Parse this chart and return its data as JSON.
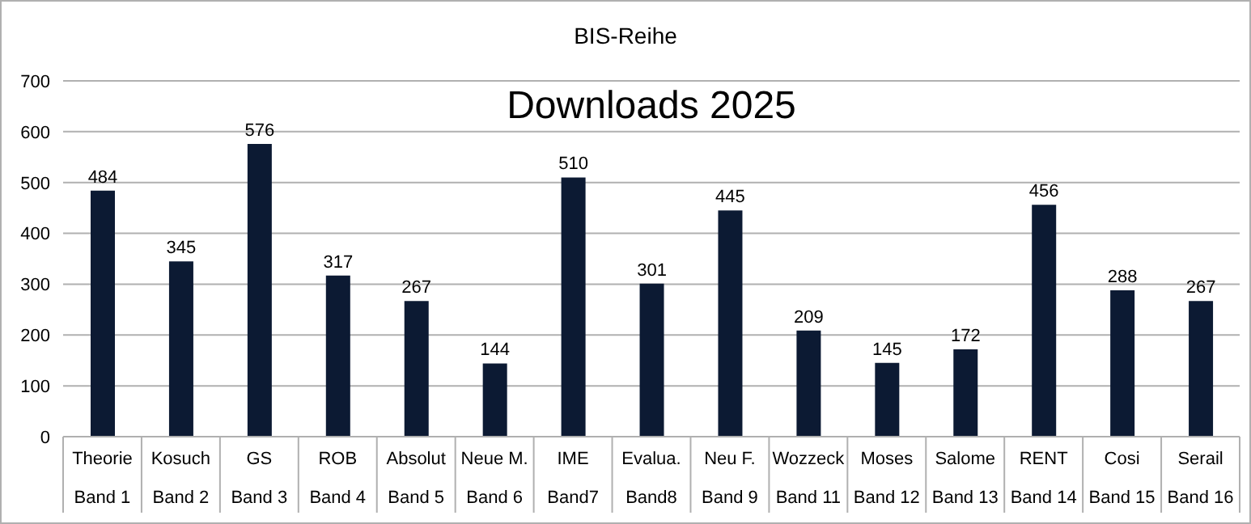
{
  "chart_data": {
    "type": "bar",
    "title": "BIS-Reihe",
    "subtitle": "Downloads 2025",
    "categories": [
      "Theorie\nBand 1",
      "Kosuch\nBand 2",
      "GS\nBand 3",
      "ROB\nBand 4",
      "Absolut\nBand 5",
      "Neue M.\nBand 6",
      "IME\nBand7",
      "Evalua.\nBand8",
      "Neu F.\nBand 9",
      "Wozzeck\nBand 11",
      "Moses\nBand 12",
      "Salome\nBand 13",
      "RENT\nBand 14",
      "Cosi\nBand 15",
      "Serail\nBand 16"
    ],
    "values": [
      484,
      345,
      576,
      317,
      267,
      144,
      510,
      301,
      445,
      209,
      145,
      172,
      456,
      288,
      267
    ],
    "color": "#0c1a33",
    "ylim": [
      0,
      700
    ],
    "yticks": [
      0,
      100,
      200,
      300,
      400,
      500,
      600,
      700
    ],
    "grid": "y",
    "data_labels": true
  }
}
